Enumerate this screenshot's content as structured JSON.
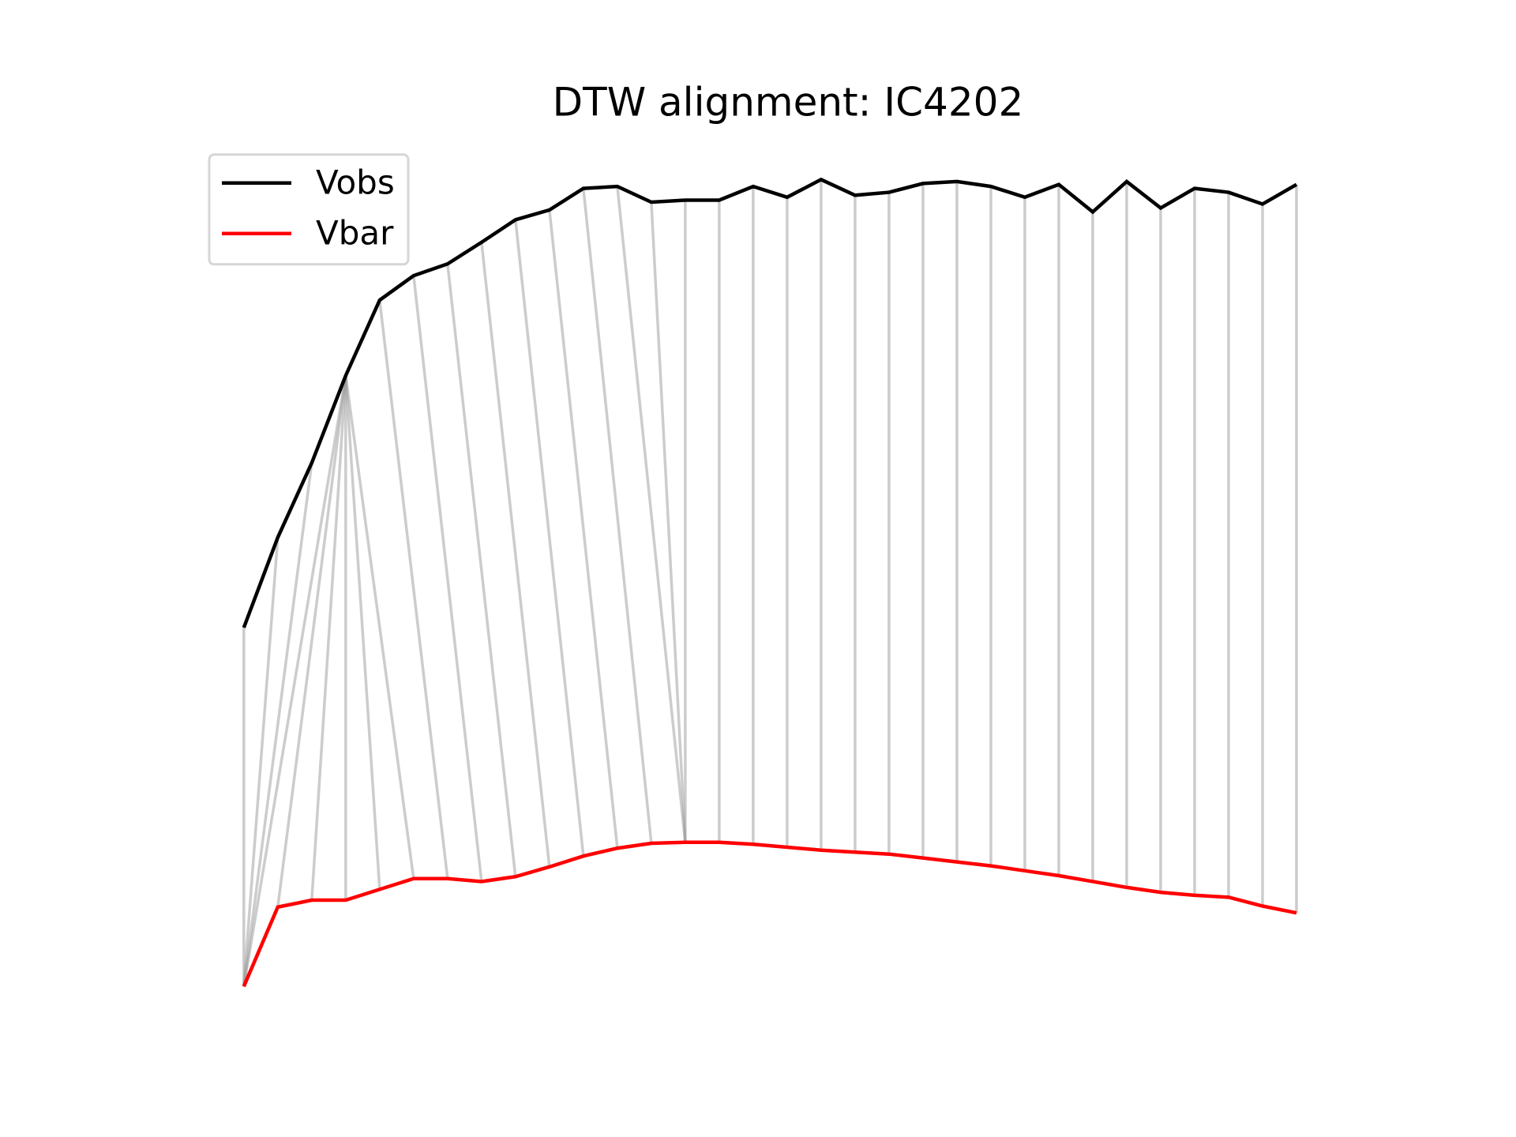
{
  "chart_data": {
    "type": "dtw",
    "title": "DTW alignment: IC4202",
    "x": [
      0,
      1,
      2,
      3,
      4,
      5,
      6,
      7,
      8,
      9,
      10,
      11,
      12,
      13,
      14,
      15,
      16,
      17,
      18,
      19,
      20,
      21,
      22,
      23,
      24,
      25,
      26,
      27,
      28,
      29,
      30,
      31
    ],
    "xlim": [
      -1.6,
      33.0
    ],
    "ylim": [
      2.8,
      92.1
    ],
    "series": [
      {
        "name": "Vobs",
        "color": "#000000",
        "values": [
          42.0,
          51.2,
          58.8,
          67.7,
          75.4,
          77.9,
          79.1,
          81.3,
          83.6,
          84.6,
          86.8,
          87.0,
          85.4,
          85.6,
          85.6,
          87.0,
          85.9,
          87.7,
          86.1,
          86.4,
          87.3,
          87.5,
          87.0,
          85.9,
          87.2,
          84.4,
          87.5,
          84.8,
          86.8,
          86.4,
          85.2,
          87.2
        ]
      },
      {
        "name": "Vbar",
        "color": "#ff0000",
        "values": [
          5.4,
          13.5,
          14.2,
          14.2,
          15.3,
          16.4,
          16.4,
          16.1,
          16.6,
          17.6,
          18.7,
          19.5,
          20.0,
          20.1,
          20.1,
          19.9,
          19.6,
          19.3,
          19.1,
          18.9,
          18.5,
          18.1,
          17.7,
          17.2,
          16.7,
          16.1,
          15.5,
          15.0,
          14.7,
          14.5,
          13.6,
          12.9
        ]
      }
    ],
    "alignment": [
      [
        0,
        0
      ],
      [
        1,
        0
      ],
      [
        2,
        0
      ],
      [
        3,
        0
      ],
      [
        3,
        1
      ],
      [
        3,
        2
      ],
      [
        3,
        3
      ],
      [
        3,
        4
      ],
      [
        3,
        5
      ],
      [
        4,
        6
      ],
      [
        5,
        7
      ],
      [
        6,
        8
      ],
      [
        7,
        9
      ],
      [
        8,
        10
      ],
      [
        9,
        11
      ],
      [
        10,
        12
      ],
      [
        11,
        13
      ],
      [
        12,
        13
      ],
      [
        13,
        13
      ],
      [
        14,
        14
      ],
      [
        15,
        15
      ],
      [
        16,
        16
      ],
      [
        17,
        17
      ],
      [
        18,
        18
      ],
      [
        19,
        19
      ],
      [
        20,
        20
      ],
      [
        21,
        21
      ],
      [
        22,
        22
      ],
      [
        23,
        23
      ],
      [
        24,
        24
      ],
      [
        25,
        25
      ],
      [
        26,
        26
      ],
      [
        27,
        27
      ],
      [
        28,
        28
      ],
      [
        29,
        29
      ],
      [
        30,
        30
      ],
      [
        31,
        31
      ]
    ],
    "alignment_color": "#999999",
    "legend": "upper left"
  }
}
